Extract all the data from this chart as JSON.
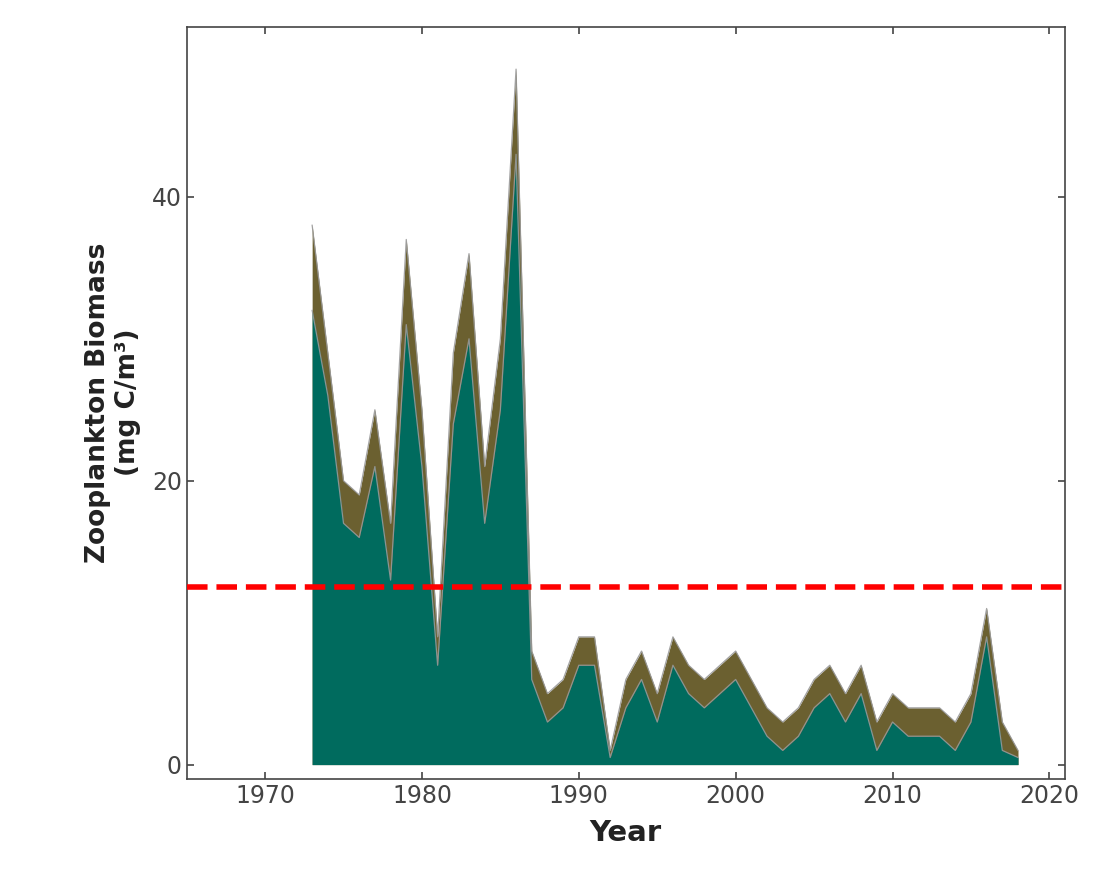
{
  "title": "",
  "xlabel": "Year",
  "ylabel": "Zooplankton Biomass\n(mg C/m³)",
  "xlim": [
    1965,
    2021
  ],
  "ylim": [
    -1,
    52
  ],
  "yticks": [
    0,
    20,
    40
  ],
  "xticks": [
    1970,
    1980,
    1990,
    2000,
    2010,
    2020
  ],
  "hline_y": 12.5,
  "hline_color": "#FF0000",
  "fill_color_teal": "#006B5E",
  "fill_color_olive": "#6B6030",
  "outline_color": "#999999",
  "background_color": "#FFFFFF",
  "years": [
    1973,
    1974,
    1975,
    1976,
    1977,
    1978,
    1979,
    1980,
    1981,
    1982,
    1983,
    1984,
    1985,
    1986,
    1987,
    1988,
    1989,
    1990,
    1991,
    1992,
    1993,
    1994,
    1995,
    1996,
    1997,
    1998,
    1999,
    2000,
    2001,
    2002,
    2003,
    2004,
    2005,
    2006,
    2007,
    2008,
    2009,
    2010,
    2011,
    2012,
    2013,
    2014,
    2015,
    2016,
    2017,
    2018
  ],
  "values_olive": [
    38,
    29,
    20,
    19,
    25,
    17,
    37,
    25,
    9,
    29,
    36,
    21,
    30,
    49,
    8,
    5,
    6,
    9,
    9,
    1,
    6,
    8,
    5,
    9,
    7,
    6,
    7,
    8,
    6,
    4,
    3,
    4,
    6,
    7,
    5,
    7,
    3,
    5,
    4,
    4,
    4,
    3,
    5,
    11,
    3,
    1
  ],
  "values_teal": [
    32,
    26,
    17,
    16,
    21,
    13,
    31,
    21,
    7,
    24,
    30,
    17,
    25,
    43,
    6,
    3,
    4,
    7,
    7,
    0.5,
    4,
    6,
    3,
    7,
    5,
    4,
    5,
    6,
    4,
    2,
    1,
    2,
    4,
    5,
    3,
    5,
    1,
    3,
    2,
    2,
    2,
    1,
    3,
    9,
    1,
    0.5
  ]
}
